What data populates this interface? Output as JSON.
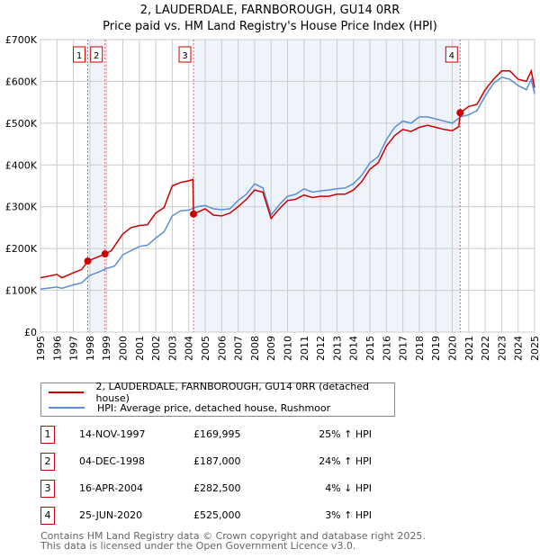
{
  "title": "2, LAUDERDALE, FARNBOROUGH, GU14 0RR",
  "subtitle": "Price paid vs. HM Land Registry's House Price Index (HPI)",
  "chart_data": {
    "type": "line",
    "ylim": [
      0,
      700000
    ],
    "xlim": [
      1995,
      2025
    ],
    "yticks": [
      {
        "v": 0,
        "label": "£0"
      },
      {
        "v": 100000,
        "label": "£100K"
      },
      {
        "v": 200000,
        "label": "£200K"
      },
      {
        "v": 300000,
        "label": "£300K"
      },
      {
        "v": 400000,
        "label": "£400K"
      },
      {
        "v": 500000,
        "label": "£500K"
      },
      {
        "v": 600000,
        "label": "£600K"
      },
      {
        "v": 700000,
        "label": "£700K"
      }
    ],
    "xticks": [
      1995,
      1996,
      1997,
      1998,
      1999,
      2000,
      2001,
      2002,
      2003,
      2004,
      2005,
      2006,
      2007,
      2008,
      2009,
      2010,
      2011,
      2012,
      2013,
      2014,
      2015,
      2016,
      2017,
      2018,
      2019,
      2020,
      2021,
      2022,
      2023,
      2024,
      2025
    ],
    "colors": {
      "property": "#cc0000",
      "hpi": "#5b8fd4",
      "shade": "#eef3fc",
      "grid": "#cccccc"
    },
    "shaded": [
      [
        1997.87,
        1998.92
      ],
      [
        2004.29,
        2020.48
      ]
    ],
    "series": [
      {
        "name": "2, LAUDERDALE, FARNBOROUGH, GU14 0RR (detached house)",
        "key": "property",
        "x": [
          1995,
          1996,
          1996.3,
          1997,
          1997.5,
          1997.87,
          1998.5,
          1998.92,
          1999.3,
          2000,
          2000.5,
          2001,
          2001.5,
          2002,
          2002.5,
          2003,
          2003.5,
          2004,
          2004.25,
          2004.29,
          2004.7,
          2005,
          2005.5,
          2006,
          2006.5,
          2007,
          2007.5,
          2008,
          2008.5,
          2009,
          2009.5,
          2010,
          2010.5,
          2011,
          2011.5,
          2012,
          2012.5,
          2013,
          2013.5,
          2014,
          2014.5,
          2015,
          2015.5,
          2016,
          2016.5,
          2017,
          2017.5,
          2018,
          2018.5,
          2019,
          2019.5,
          2020,
          2020.4,
          2020.48,
          2021,
          2021.5,
          2022,
          2022.5,
          2023,
          2023.5,
          2024,
          2024.5,
          2024.8,
          2025
        ],
        "y": [
          130000,
          138000,
          130000,
          142000,
          150000,
          169995,
          180000,
          187000,
          195000,
          235000,
          250000,
          255000,
          257000,
          285000,
          298000,
          350000,
          358000,
          362000,
          365000,
          282500,
          290000,
          295000,
          280000,
          278000,
          285000,
          300000,
          318000,
          340000,
          335000,
          272000,
          295000,
          315000,
          318000,
          328000,
          322000,
          325000,
          325000,
          330000,
          330000,
          340000,
          360000,
          390000,
          405000,
          445000,
          470000,
          485000,
          480000,
          490000,
          495000,
          490000,
          485000,
          482000,
          492000,
          525000,
          540000,
          545000,
          580000,
          605000,
          625000,
          625000,
          605000,
          600000,
          625000,
          585000
        ]
      },
      {
        "name": "HPI: Average price, detached house, Rushmoor",
        "key": "hpi",
        "x": [
          1995,
          1996,
          1996.3,
          1997,
          1997.5,
          1998,
          1998.5,
          1999,
          1999.5,
          2000,
          2000.5,
          2001,
          2001.5,
          2002,
          2002.5,
          2003,
          2003.5,
          2004,
          2004.5,
          2005,
          2005.5,
          2006,
          2006.5,
          2007,
          2007.5,
          2008,
          2008.5,
          2009,
          2009.5,
          2010,
          2010.5,
          2011,
          2011.5,
          2012,
          2012.5,
          2013,
          2013.5,
          2014,
          2014.5,
          2015,
          2015.5,
          2016,
          2016.5,
          2017,
          2017.5,
          2018,
          2018.5,
          2019,
          2019.5,
          2020,
          2020.5,
          2021,
          2021.5,
          2022,
          2022.5,
          2023,
          2023.5,
          2024,
          2024.5,
          2024.8,
          2025
        ],
        "y": [
          103000,
          108000,
          105000,
          113000,
          118000,
          136000,
          143000,
          152000,
          158000,
          185000,
          195000,
          205000,
          208000,
          225000,
          240000,
          278000,
          290000,
          292000,
          300000,
          303000,
          295000,
          293000,
          295000,
          315000,
          330000,
          355000,
          345000,
          280000,
          305000,
          325000,
          330000,
          343000,
          335000,
          338000,
          340000,
          343000,
          345000,
          355000,
          375000,
          405000,
          420000,
          460000,
          490000,
          505000,
          500000,
          515000,
          515000,
          510000,
          505000,
          500000,
          515000,
          520000,
          530000,
          565000,
          595000,
          610000,
          605000,
          590000,
          580000,
          605000,
          570000
        ]
      }
    ],
    "sales": [
      {
        "label": "1",
        "x": 1997.87,
        "y": 169995
      },
      {
        "label": "2",
        "x": 1998.92,
        "y": 187000
      },
      {
        "label": "3",
        "x": 2004.29,
        "y": 282500
      },
      {
        "label": "4",
        "x": 2020.48,
        "y": 525000
      }
    ]
  },
  "legend": {
    "property": "2, LAUDERDALE, FARNBOROUGH, GU14 0RR (detached house)",
    "hpi": "HPI: Average price, detached house, Rushmoor"
  },
  "transactions": [
    {
      "num": "1",
      "date": "14-NOV-1997",
      "price": "£169,995",
      "hpi": "25% ↑ HPI"
    },
    {
      "num": "2",
      "date": "04-DEC-1998",
      "price": "£187,000",
      "hpi": "24% ↑ HPI"
    },
    {
      "num": "3",
      "date": "16-APR-2004",
      "price": "£282,500",
      "hpi": "4% ↓ HPI"
    },
    {
      "num": "4",
      "date": "25-JUN-2020",
      "price": "£525,000",
      "hpi": "3% ↑ HPI"
    }
  ],
  "footer": {
    "line1": "Contains HM Land Registry data © Crown copyright and database right 2025.",
    "line2": "This data is licensed under the Open Government Licence v3.0."
  }
}
